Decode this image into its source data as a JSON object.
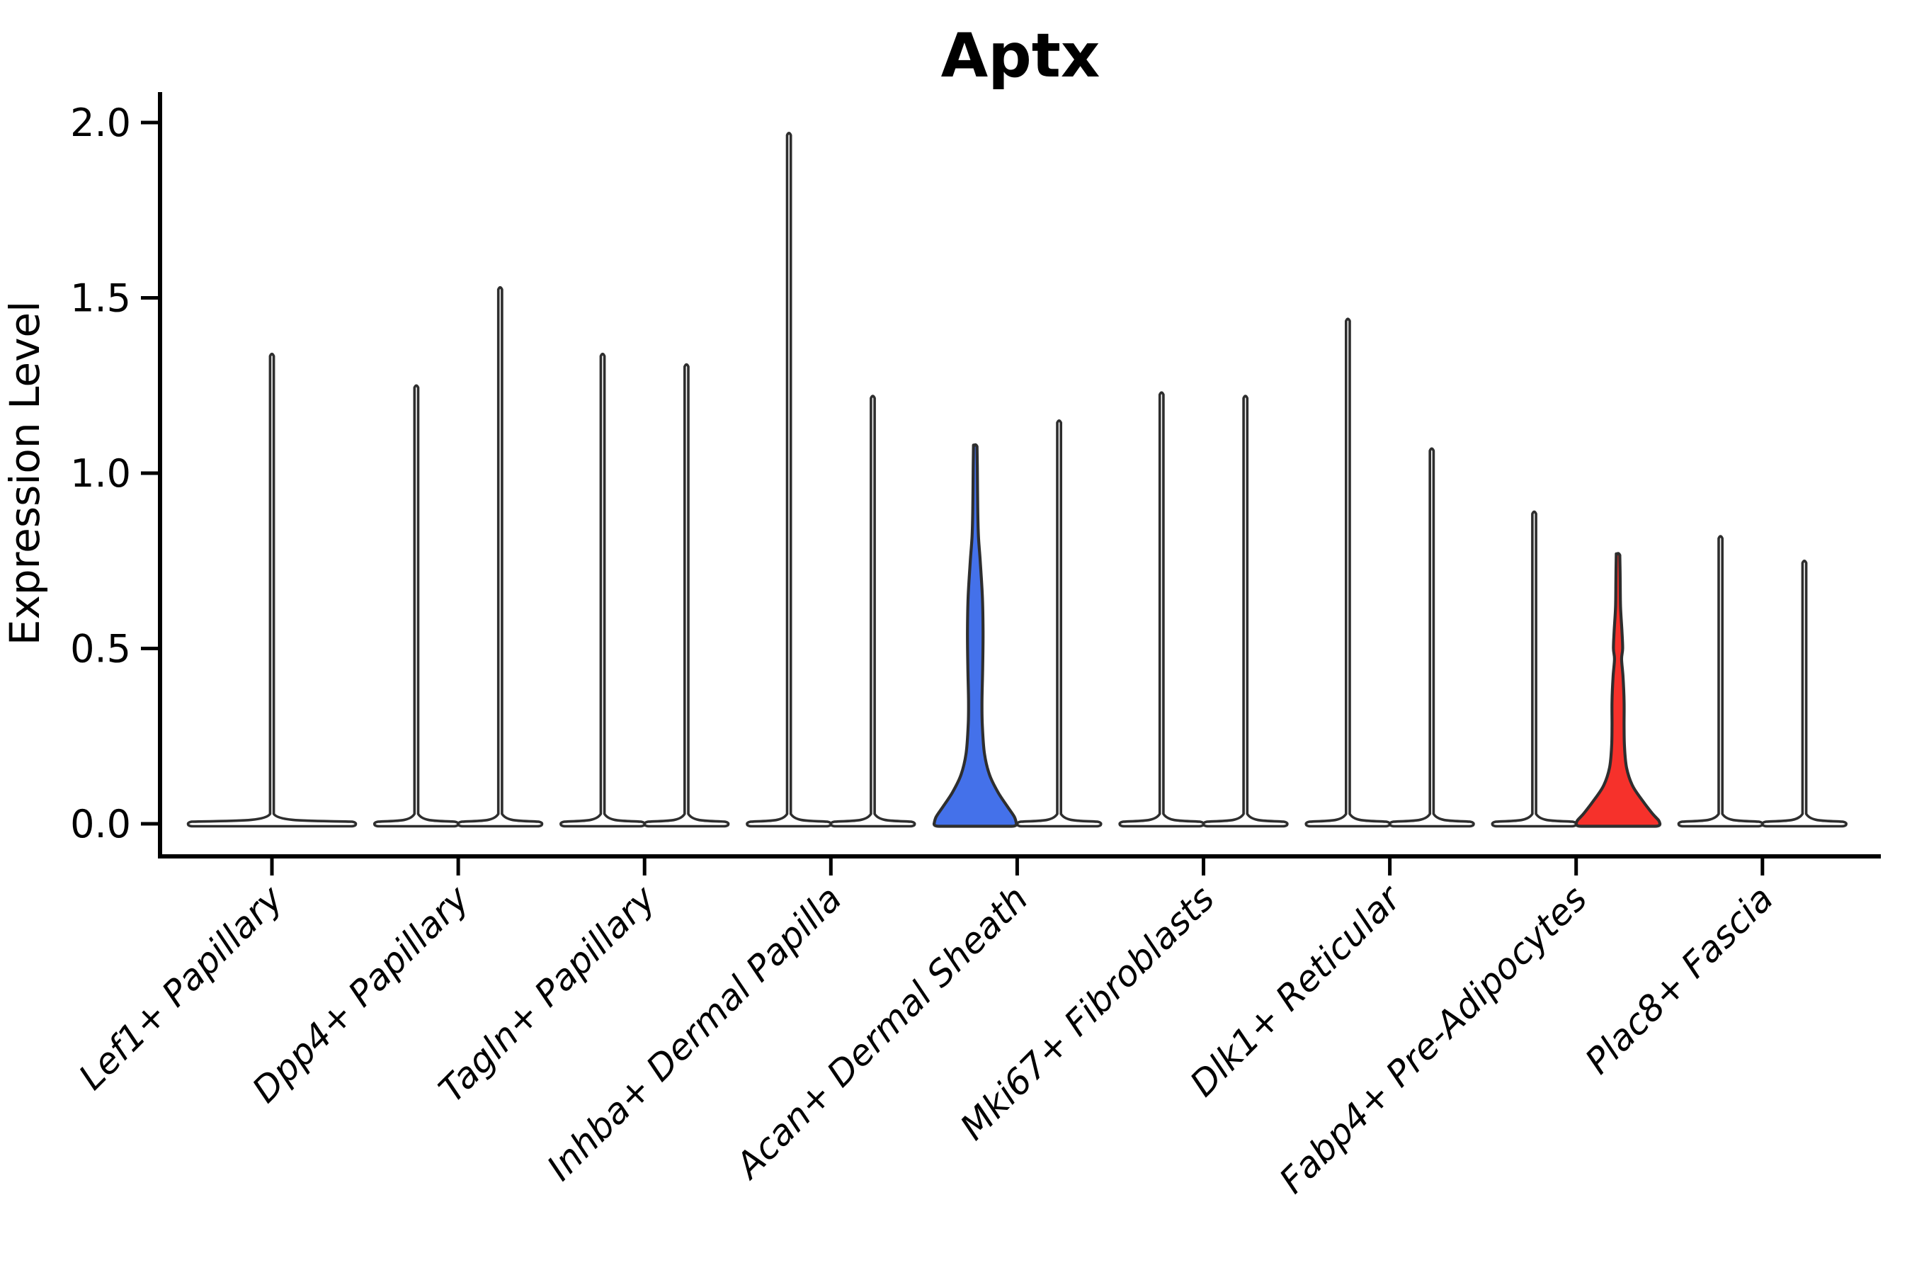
{
  "figure": {
    "title": "Aptx",
    "ylabel": "Expression Level",
    "background": "#ffffff"
  },
  "chart_data": {
    "type": "violin",
    "title": "Aptx",
    "xlabel": "",
    "ylabel": "Expression Level",
    "ylim": [
      0,
      2.07
    ],
    "yticks": [
      0.0,
      0.5,
      1.0,
      1.5,
      2.0
    ],
    "ytick_labels": [
      "0.0",
      "0.5",
      "1.0",
      "1.5",
      "2.0"
    ],
    "grid": false,
    "legend": "none",
    "x_tick_rotation": 45,
    "x_tick_style": "italic",
    "categories": [
      "Lef1+ Papillary",
      "Dpp4+ Papillary",
      "Tagln+ Papillary",
      "Inhba+ Dermal Papilla",
      "Acan+ Dermal Sheath",
      "Mki67+ Fibroblasts",
      "Dlk1+ Reticular",
      "Fabp4+ Pre-Adipocytes",
      "Plac8+ Fascia"
    ],
    "colors": {
      "outline": "#2e2e2e",
      "unfilled": "#ffffff",
      "highlight_blue": "#4471ea",
      "highlight_red": "#f6312b",
      "axis": "#000000"
    },
    "violins": [
      {
        "category": "Lef1+ Papillary",
        "slot": "full",
        "max": 1.34,
        "fill": "none"
      },
      {
        "category": "Dpp4+ Papillary",
        "slot": "left",
        "max": 1.25,
        "fill": "none"
      },
      {
        "category": "Dpp4+ Papillary",
        "slot": "right",
        "max": 1.53,
        "fill": "none"
      },
      {
        "category": "Tagln+ Papillary",
        "slot": "left",
        "max": 1.34,
        "fill": "none"
      },
      {
        "category": "Tagln+ Papillary",
        "slot": "right",
        "max": 1.31,
        "fill": "none"
      },
      {
        "category": "Inhba+ Dermal Papilla",
        "slot": "left",
        "max": 1.97,
        "fill": "none"
      },
      {
        "category": "Inhba+ Dermal Papilla",
        "slot": "right",
        "max": 1.22,
        "fill": "none"
      },
      {
        "category": "Acan+ Dermal Sheath",
        "slot": "left",
        "max": 1.08,
        "fill": "highlight_blue",
        "profile": [
          [
            1.08,
            0.042
          ],
          [
            1.0,
            0.051
          ],
          [
            0.9,
            0.059
          ],
          [
            0.82,
            0.076
          ],
          [
            0.75,
            0.118
          ],
          [
            0.65,
            0.169
          ],
          [
            0.55,
            0.186
          ],
          [
            0.45,
            0.178
          ],
          [
            0.35,
            0.161
          ],
          [
            0.28,
            0.169
          ],
          [
            0.2,
            0.22
          ],
          [
            0.14,
            0.339
          ],
          [
            0.09,
            0.542
          ],
          [
            0.05,
            0.763
          ],
          [
            0.02,
            0.932
          ],
          [
            0.0,
            0.983
          ]
        ]
      },
      {
        "category": "Acan+ Dermal Sheath",
        "slot": "right",
        "max": 1.15,
        "fill": "none"
      },
      {
        "category": "Mki67+ Fibroblasts",
        "slot": "left",
        "max": 1.23,
        "fill": "none"
      },
      {
        "category": "Mki67+ Fibroblasts",
        "slot": "right",
        "max": 1.22,
        "fill": "none"
      },
      {
        "category": "Dlk1+ Reticular",
        "slot": "left",
        "max": 1.44,
        "fill": "none"
      },
      {
        "category": "Dlk1+ Reticular",
        "slot": "right",
        "max": 1.07,
        "fill": "none"
      },
      {
        "category": "Fabp4+ Pre-Adipocytes",
        "slot": "left",
        "max": 0.89,
        "fill": "none"
      },
      {
        "category": "Fabp4+ Pre-Adipocytes",
        "slot": "right",
        "max": 0.77,
        "fill": "highlight_red",
        "profile": [
          [
            0.77,
            0.042
          ],
          [
            0.7,
            0.051
          ],
          [
            0.62,
            0.059
          ],
          [
            0.55,
            0.093
          ],
          [
            0.5,
            0.11
          ],
          [
            0.47,
            0.085
          ],
          [
            0.42,
            0.118
          ],
          [
            0.35,
            0.144
          ],
          [
            0.28,
            0.144
          ],
          [
            0.22,
            0.153
          ],
          [
            0.16,
            0.203
          ],
          [
            0.11,
            0.339
          ],
          [
            0.07,
            0.559
          ],
          [
            0.03,
            0.814
          ],
          [
            0.01,
            0.966
          ],
          [
            0.0,
            1.0
          ]
        ]
      },
      {
        "category": "Plac8+ Fascia",
        "slot": "left",
        "max": 0.82,
        "fill": "none"
      },
      {
        "category": "Plac8+ Fascia",
        "slot": "right",
        "max": 0.75,
        "fill": "none"
      }
    ]
  }
}
